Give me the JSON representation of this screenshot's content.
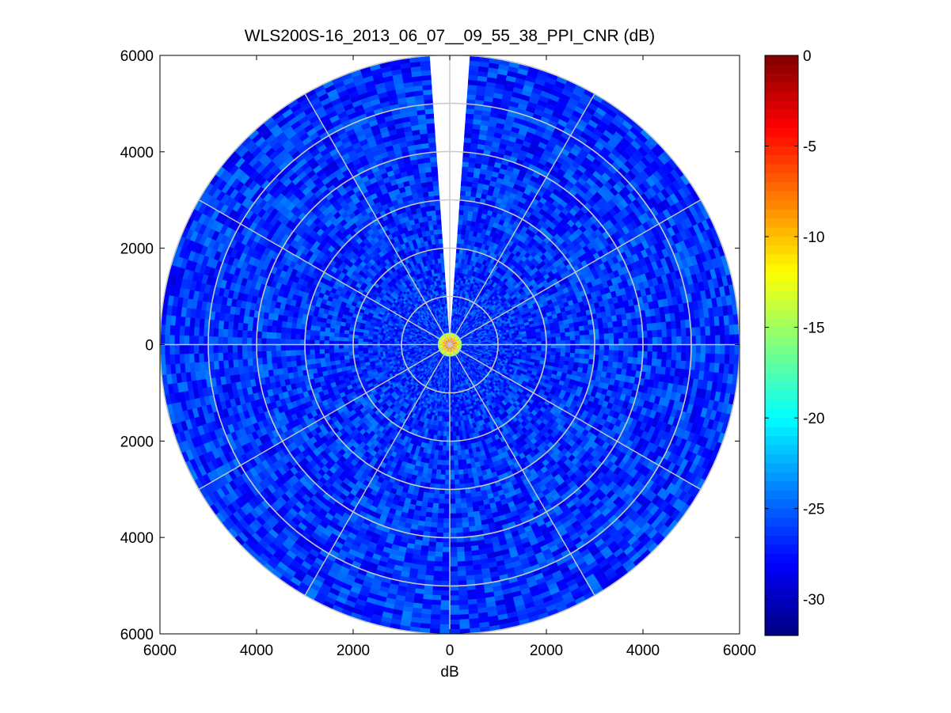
{
  "chart_data": {
    "type": "heatmap",
    "subtype": "polar-ppi",
    "title": "WLS200S-16_2013_06_07__09_55_38_PPI_CNR (dB)",
    "xlabel": "dB",
    "ylabel": "",
    "xlim": [
      -6000,
      6000
    ],
    "ylim": [
      -6000,
      6000
    ],
    "xticks": [
      -6000,
      -4000,
      -2000,
      0,
      2000,
      4000,
      6000
    ],
    "yticks": [
      -6000,
      -4000,
      -2000,
      0,
      2000,
      4000,
      6000
    ],
    "x_tick_labels": [
      "6000",
      "4000",
      "2000",
      "0",
      "2000",
      "4000",
      "6000"
    ],
    "y_tick_labels": [
      "6000",
      "4000",
      "2000",
      "0",
      "2000",
      "4000",
      "6000"
    ],
    "range_rings": [
      1000,
      2000,
      3000,
      4000,
      5000,
      6000
    ],
    "spoke_angles_deg": [
      0,
      30,
      60,
      90,
      120,
      150,
      180,
      210,
      240,
      270,
      300,
      330
    ],
    "max_range": 6000,
    "blind_sector_deg": [
      -4,
      4
    ],
    "grid": true,
    "colormap": "jet",
    "colorbar": {
      "clim": [
        -32,
        0
      ],
      "ticks": [
        0,
        -5,
        -10,
        -15,
        -20,
        -25,
        -30
      ],
      "tick_labels": [
        "0",
        "-5",
        "-10",
        "-15",
        "-20",
        "-25",
        "-30"
      ]
    },
    "values_summary": {
      "typical_cnr_db": -26.5,
      "spread_db": 2.5,
      "near_range_peak_db": -5,
      "near_range_radius": 250
    }
  }
}
